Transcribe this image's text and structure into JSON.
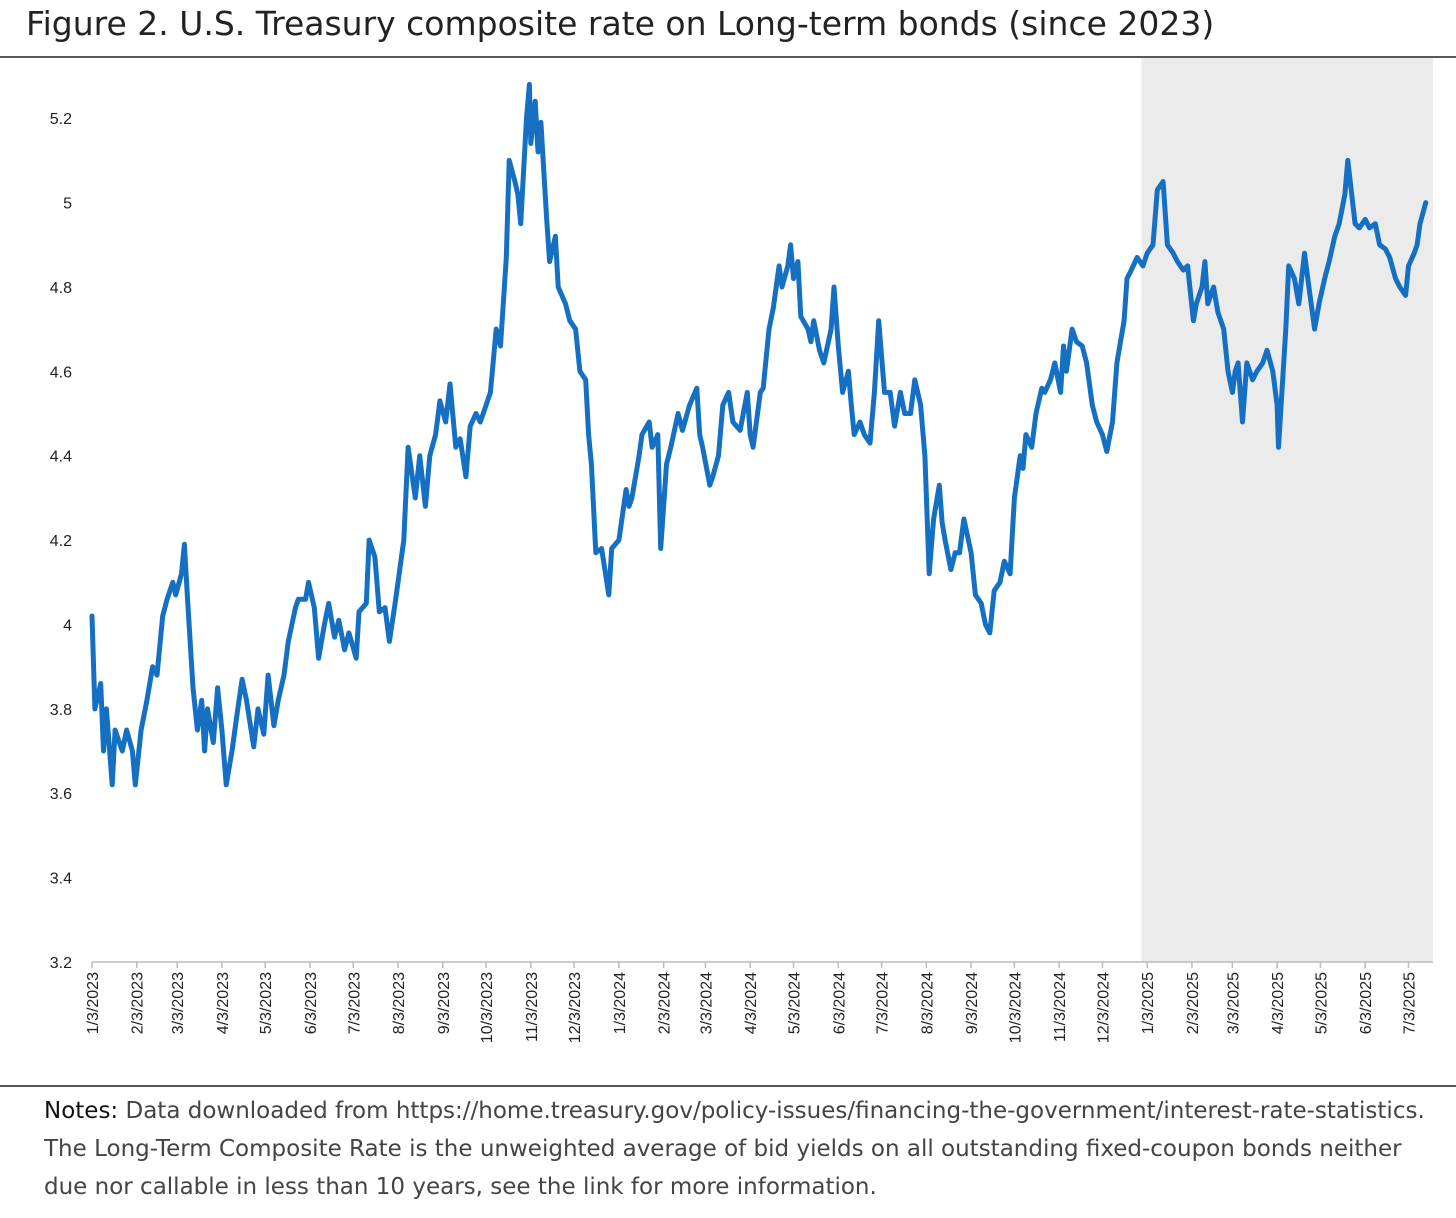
{
  "chart_data": {
    "type": "line",
    "title": "Figure 2. U.S. Treasury composite rate on Long-term bonds (since 2023)",
    "color": "#1570c4",
    "xlim": [
      "1/3/2023",
      "7/20/2025"
    ],
    "ylim": [
      3.2,
      5.3
    ],
    "yticks": [
      3.2,
      3.4,
      3.6,
      3.8,
      4,
      4.2,
      4.4,
      4.6,
      4.8,
      5,
      5.2
    ],
    "xticks": [
      "1/3/2023",
      "2/3/2023",
      "3/3/2023",
      "4/3/2023",
      "5/3/2023",
      "6/3/2023",
      "7/3/2023",
      "8/3/2023",
      "9/3/2023",
      "10/3/2023",
      "11/3/2023",
      "12/3/2023",
      "1/3/2024",
      "2/3/2024",
      "3/3/2024",
      "4/3/2024",
      "5/3/2024",
      "6/3/2024",
      "7/3/2024",
      "8/3/2024",
      "9/3/2024",
      "10/3/2024",
      "11/3/2024",
      "12/3/2024",
      "1/3/2025",
      "2/3/2025",
      "3/3/2025",
      "4/3/2025",
      "5/3/2025",
      "6/3/2025",
      "7/3/2025"
    ],
    "shaded_region": [
      "12/30/2024",
      "7/20/2025"
    ],
    "shade_color": "#ebebeb",
    "x": [
      "1/3/2023",
      "1/5/2023",
      "1/9/2023",
      "1/11/2023",
      "1/13/2023",
      "1/17/2023",
      "1/19/2023",
      "1/24/2023",
      "1/27/2023",
      "1/31/2023",
      "2/2/2023",
      "2/6/2023",
      "2/10/2023",
      "2/14/2023",
      "2/17/2023",
      "2/21/2023",
      "2/24/2023",
      "2/28/2023",
      "3/2/2023",
      "3/6/2023",
      "3/8/2023",
      "3/10/2023",
      "3/14/2023",
      "3/17/2023",
      "3/20/2023",
      "3/22/2023",
      "3/24/2023",
      "3/28/2023",
      "3/31/2023",
      "4/3/2023",
      "4/6/2023",
      "4/10/2023",
      "4/14/2023",
      "4/17/2023",
      "4/20/2023",
      "4/25/2023",
      "4/28/2023",
      "5/2/2023",
      "5/5/2023",
      "5/9/2023",
      "5/12/2023",
      "5/16/2023",
      "5/19/2023",
      "5/24/2023",
      "5/26/2023",
      "5/31/2023",
      "6/2/2023",
      "6/6/2023",
      "6/9/2023",
      "6/13/2023",
      "6/16/2023",
      "6/20/2023",
      "6/23/2023",
      "6/27/2023",
      "6/30/2023",
      "7/5/2023",
      "7/7/2023",
      "7/12/2023",
      "7/14/2023",
      "7/18/2023",
      "7/21/2023",
      "7/25/2023",
      "7/28/2023",
      "8/1/2023",
      "8/3/2023",
      "8/7/2023",
      "8/10/2023",
      "8/15/2023",
      "8/18/2023",
      "8/22/2023",
      "8/25/2023",
      "8/29/2023",
      "9/1/2023",
      "9/5/2023",
      "9/8/2023",
      "9/12/2023",
      "9/15/2023",
      "9/19/2023",
      "9/22/2023",
      "9/26/2023",
      "9/29/2023",
      "10/3/2023",
      "10/6/2023",
      "10/10/2023",
      "10/13/2023",
      "10/17/2023",
      "10/19/2023",
      "10/23/2023",
      "10/25/2023",
      "10/27/2023",
      "10/31/2023",
      "11/2/2023",
      "11/3/2023",
      "11/6/2023",
      "11/8/2023",
      "11/10/2023",
      "11/14/2023",
      "11/16/2023",
      "11/20/2023",
      "11/22/2023",
      "11/27/2023",
      "11/30/2023",
      "12/4/2023",
      "12/7/2023",
      "12/11/2023",
      "12/13/2023",
      "12/15/2023",
      "12/18/2023",
      "12/22/2023",
      "12/27/2023",
      "12/29/2023",
      "1/3/2024",
      "1/8/2024",
      "1/10/2024",
      "1/12/2024",
      "1/17/2024",
      "1/19/2024",
      "1/24/2024",
      "1/26/2024",
      "1/30/2024",
      "2/1/2024",
      "2/5/2024",
      "2/8/2024",
      "2/13/2024",
      "2/16/2024",
      "2/21/2024",
      "2/26/2024",
      "2/28/2024",
      "3/1/2024",
      "3/6/2024",
      "3/8/2024",
      "3/12/2024",
      "3/15/2024",
      "3/19/2024",
      "3/22/2024",
      "3/27/2024",
      "4/1/2024",
      "4/3/2024",
      "4/5/2024",
      "4/10/2024",
      "4/12/2024",
      "4/16/2024",
      "4/19/2024",
      "4/23/2024",
      "4/25/2024",
      "4/29/2024",
      "5/1/2024",
      "5/3/2024",
      "5/6/2024",
      "5/8/2024",
      "5/13/2024",
      "5/15/2024",
      "5/17/2024",
      "5/21/2024",
      "5/24/2024",
      "5/29/2024",
      "5/31/2024",
      "6/3/2024",
      "6/6/2024",
      "6/10/2024",
      "6/12/2024",
      "6/14/2024",
      "6/18/2024",
      "6/21/2024",
      "6/25/2024",
      "6/28/2024",
      "7/1/2024",
      "7/5/2024",
      "7/9/2024",
      "7/12/2024",
      "7/16/2024",
      "7/19/2024",
      "7/23/2024",
      "7/26/2024",
      "7/30/2024",
      "8/2/2024",
      "8/5/2024",
      "8/8/2024",
      "8/12/2024",
      "8/14/2024",
      "8/16/2024",
      "8/20/2024",
      "8/23/2024",
      "8/26/2024",
      "8/29/2024",
      "9/3/2024",
      "9/6/2024",
      "9/10/2024",
      "9/13/2024",
      "9/16/2024",
      "9/19/2024",
      "9/23/2024",
      "9/26/2024",
      "9/30/2024",
      "10/3/2024",
      "10/7/2024",
      "10/9/2024",
      "10/11/2024",
      "10/15/2024",
      "10/18/2024",
      "10/22/2024",
      "10/24/2024",
      "10/28/2024",
      "10/31/2024",
      "11/4/2024",
      "11/6/2024",
      "11/8/2024",
      "11/12/2024",
      "11/15/2024",
      "11/19/2024",
      "11/22/2024",
      "11/26/2024",
      "11/29/2024",
      "12/3/2024",
      "12/6/2024",
      "12/10/2024",
      "12/13/2024",
      "12/16/2024",
      "12/18/2024",
      "12/20/2024",
      "12/23/2024",
      "12/27/2024",
      "12/31/2024",
      "1/3/2025",
      "1/7/2025",
      "1/10/2025",
      "1/14/2025",
      "1/17/2025",
      "1/21/2025",
      "1/24/2025",
      "1/28/2025",
      "1/31/2025",
      "2/4/2025",
      "2/6/2025",
      "2/10/2025",
      "2/12/2025",
      "2/14/2025",
      "2/18/2025",
      "2/21/2025",
      "2/25/2025",
      "2/28/2025",
      "3/3/2025",
      "3/5/2025",
      "3/7/2025",
      "3/10/2025",
      "3/13/2025",
      "3/17/2025",
      "3/20/2025",
      "3/24/2025",
      "3/27/2025",
      "3/31/2025",
      "4/3/2025",
      "4/4/2025",
      "4/9/2025",
      "4/11/2025",
      "4/15/2025",
      "4/18/2025",
      "4/22/2025",
      "4/25/2025",
      "4/29/2025",
      "5/2/2025",
      "5/6/2025",
      "5/9/2025",
      "5/13/2025",
      "5/16/2025",
      "5/20/2025",
      "5/22/2025",
      "5/27/2025",
      "5/30/2025",
      "6/3/2025",
      "6/6/2025",
      "6/10/2025",
      "6/13/2025",
      "6/17/2025",
      "6/20/2025",
      "6/24/2025",
      "6/27/2025",
      "7/1/2025",
      "7/3/2025",
      "7/7/2025",
      "7/9/2025",
      "7/11/2025",
      "7/15/2025"
    ],
    "values": [
      4.02,
      3.8,
      3.86,
      3.7,
      3.8,
      3.62,
      3.75,
      3.7,
      3.75,
      3.7,
      3.62,
      3.75,
      3.82,
      3.9,
      3.88,
      4.02,
      4.06,
      4.1,
      4.07,
      4.12,
      4.19,
      4.07,
      3.85,
      3.75,
      3.82,
      3.7,
      3.8,
      3.72,
      3.85,
      3.75,
      3.62,
      3.7,
      3.8,
      3.87,
      3.82,
      3.71,
      3.8,
      3.74,
      3.88,
      3.76,
      3.82,
      3.88,
      3.96,
      4.04,
      4.06,
      4.06,
      4.1,
      4.04,
      3.92,
      4.0,
      4.05,
      3.97,
      4.01,
      3.94,
      3.98,
      3.92,
      4.03,
      4.05,
      4.2,
      4.16,
      4.03,
      4.04,
      3.96,
      4.05,
      4.1,
      4.2,
      4.42,
      4.3,
      4.4,
      4.28,
      4.4,
      4.45,
      4.53,
      4.48,
      4.57,
      4.42,
      4.44,
      4.35,
      4.47,
      4.5,
      4.48,
      4.52,
      4.55,
      4.7,
      4.66,
      4.87,
      5.1,
      5.05,
      5.02,
      4.95,
      5.2,
      5.28,
      5.14,
      5.24,
      5.12,
      5.19,
      4.96,
      4.86,
      4.92,
      4.8,
      4.76,
      4.72,
      4.7,
      4.6,
      4.58,
      4.45,
      4.38,
      4.17,
      4.18,
      4.07,
      4.18,
      4.2,
      4.32,
      4.28,
      4.3,
      4.4,
      4.45,
      4.48,
      4.42,
      4.45,
      4.18,
      4.38,
      4.42,
      4.5,
      4.46,
      4.52,
      4.56,
      4.45,
      4.42,
      4.33,
      4.35,
      4.4,
      4.52,
      4.55,
      4.48,
      4.46,
      4.55,
      4.45,
      4.42,
      4.55,
      4.56,
      4.7,
      4.75,
      4.85,
      4.8,
      4.85,
      4.9,
      4.82,
      4.86,
      4.73,
      4.7,
      4.67,
      4.72,
      4.65,
      4.62,
      4.7,
      4.8,
      4.66,
      4.55,
      4.6,
      4.52,
      4.45,
      4.48,
      4.45,
      4.43,
      4.55,
      4.72,
      4.55,
      4.55,
      4.47,
      4.55,
      4.5,
      4.5,
      4.58,
      4.52,
      4.4,
      4.12,
      4.25,
      4.33,
      4.24,
      4.2,
      4.13,
      4.17,
      4.17,
      4.25,
      4.17,
      4.07,
      4.05,
      4.0,
      3.98,
      4.08,
      4.1,
      4.15,
      4.12,
      4.3,
      4.4,
      4.37,
      4.45,
      4.42,
      4.5,
      4.56,
      4.55,
      4.58,
      4.62,
      4.55,
      4.66,
      4.6,
      4.7,
      4.67,
      4.66,
      4.62,
      4.52,
      4.48,
      4.45,
      4.41,
      4.48,
      4.62,
      4.68,
      4.72,
      4.82,
      4.84,
      4.87,
      4.85,
      4.88,
      4.9,
      5.03,
      5.05,
      4.9,
      4.88,
      4.86,
      4.84,
      4.85,
      4.72,
      4.76,
      4.8,
      4.86,
      4.76,
      4.8,
      4.74,
      4.7,
      4.6,
      4.55,
      4.6,
      4.62,
      4.48,
      4.62,
      4.58,
      4.6,
      4.62,
      4.65,
      4.6,
      4.52,
      4.42,
      4.7,
      4.85,
      4.82,
      4.76,
      4.88,
      4.8,
      4.7,
      4.76,
      4.82,
      4.86,
      4.92,
      4.95,
      5.02,
      5.1,
      4.95,
      4.94,
      4.96,
      4.94,
      4.95,
      4.9,
      4.89,
      4.87,
      4.82,
      4.8,
      4.78,
      4.85,
      4.88,
      4.9,
      4.95,
      5.0
    ]
  },
  "notes": {
    "label": "Notes:",
    "text": "Data downloaded from https://home.treasury.gov/policy-issues/financing-the-government/interest-rate-statistics. The Long-Term Composite Rate is the unweighted average of bid yields on all outstanding fixed-coupon bonds neither due nor callable in less than 10 years, see the link for more information."
  }
}
